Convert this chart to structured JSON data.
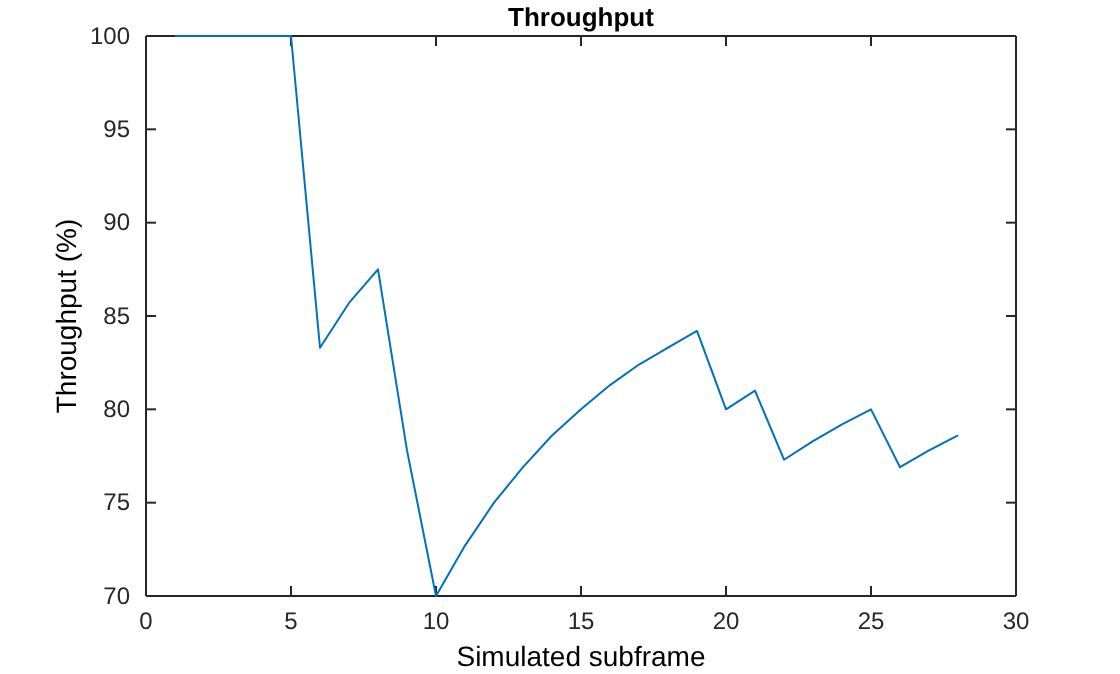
{
  "chart_data": {
    "type": "line",
    "title": "Throughput",
    "xlabel": "Simulated subframe",
    "ylabel": "Throughput (%)",
    "x": [
      1,
      2,
      3,
      4,
      5,
      6,
      7,
      8,
      9,
      10,
      11,
      12,
      13,
      14,
      15,
      16,
      17,
      18,
      19,
      20,
      21,
      22,
      23,
      24,
      25,
      26,
      27,
      28
    ],
    "series": [
      {
        "color": "#0072bd",
        "values": [
          100,
          100,
          100,
          100,
          100,
          83.3,
          85.7,
          87.5,
          77.8,
          70,
          72.7,
          75,
          76.9,
          78.6,
          80,
          81.3,
          82.4,
          83.3,
          84.2,
          80,
          81,
          77.3,
          78.3,
          79.2,
          80,
          76.9,
          77.8,
          78.6
        ]
      }
    ],
    "xlim": [
      0,
      30
    ],
    "xticks": [
      0,
      5,
      10,
      15,
      20,
      25,
      30
    ],
    "ylim": [
      70,
      100
    ],
    "yticks": [
      70,
      75,
      80,
      85,
      90,
      95,
      100
    ],
    "grid": false
  }
}
